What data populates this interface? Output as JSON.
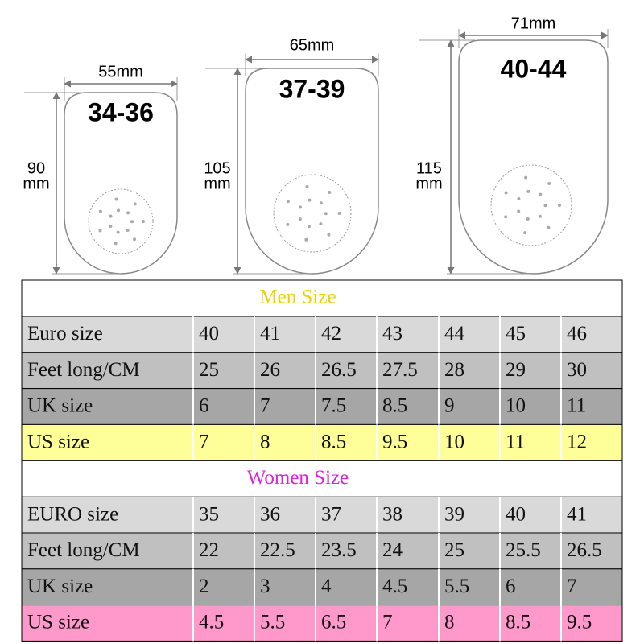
{
  "insoles": [
    {
      "width": "55mm",
      "size": "34-36",
      "height_value": "90",
      "height_unit": "mm"
    },
    {
      "width": "65mm",
      "size": "37-39",
      "height_value": "105",
      "height_unit": "mm"
    },
    {
      "width": "71mm",
      "size": "40-44",
      "height_value": "115",
      "height_unit": "mm"
    }
  ],
  "tables": [
    {
      "title": "Men Size",
      "rows": [
        [
          "Euro size",
          "40",
          "41",
          "42",
          "43",
          "44",
          "45",
          "46"
        ],
        [
          "Feet long/CM",
          "25",
          "26",
          "26.5",
          "27.5",
          "28",
          "29",
          "30"
        ],
        [
          "UK size",
          "6",
          "7",
          "7.5",
          "8.5",
          "9",
          "10",
          "11"
        ],
        [
          "US size",
          "7",
          "8",
          "8.5",
          "9.5",
          "10",
          "11",
          "12"
        ]
      ]
    },
    {
      "title": "Women Size",
      "rows": [
        [
          "EURO size",
          "35",
          "36",
          "37",
          "38",
          "39",
          "40",
          "41"
        ],
        [
          "Feet long/CM",
          "22",
          "22.5",
          "23.5",
          "24",
          "25",
          "25.5",
          "26.5"
        ],
        [
          "UK size",
          "2",
          "3",
          "4",
          "4.5",
          "5.5",
          "6",
          "7"
        ],
        [
          "US size",
          "4.5",
          "5.5",
          "6.5",
          "7",
          "8",
          "8.5",
          "9.5"
        ]
      ]
    }
  ]
}
